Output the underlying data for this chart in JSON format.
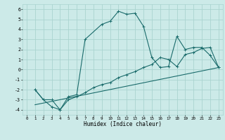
{
  "xlabel": "Humidex (Indice chaleur)",
  "bg_color": "#cceae8",
  "grid_color": "#aad4d0",
  "line_color": "#1a6b6b",
  "xlim": [
    -0.5,
    23.5
  ],
  "ylim": [
    -4.5,
    6.5
  ],
  "xticks": [
    0,
    1,
    2,
    3,
    4,
    5,
    6,
    7,
    8,
    9,
    10,
    11,
    12,
    13,
    14,
    15,
    16,
    17,
    18,
    19,
    20,
    21,
    22,
    23
  ],
  "yticks": [
    -4,
    -3,
    -2,
    -1,
    0,
    1,
    2,
    3,
    4,
    5,
    6
  ],
  "line1_x": [
    1,
    2,
    3,
    4,
    5,
    6,
    7,
    9,
    10,
    11,
    12,
    13,
    14,
    15,
    16,
    17,
    18,
    19,
    20,
    21,
    22,
    23
  ],
  "line1_y": [
    -2.0,
    -3.0,
    -3.0,
    -4.0,
    -2.7,
    -2.5,
    3.0,
    4.5,
    4.8,
    5.8,
    5.5,
    5.6,
    4.3,
    1.2,
    0.2,
    0.3,
    3.3,
    2.0,
    2.2,
    2.2,
    1.4,
    0.2
  ],
  "line2_x": [
    1,
    2,
    3,
    4,
    5,
    6,
    7,
    8,
    9,
    10,
    11,
    12,
    13,
    14,
    15,
    16,
    17,
    18,
    19,
    20,
    21,
    22,
    23
  ],
  "line2_y": [
    -2.0,
    -3.0,
    -3.7,
    -4.0,
    -3.0,
    -2.7,
    -2.3,
    -1.8,
    -1.5,
    -1.3,
    -0.8,
    -0.5,
    -0.2,
    0.2,
    0.5,
    1.2,
    1.0,
    0.3,
    1.5,
    1.7,
    2.1,
    2.2,
    0.2
  ],
  "regline_x": [
    1,
    23
  ],
  "regline_y": [
    -3.5,
    0.2
  ]
}
